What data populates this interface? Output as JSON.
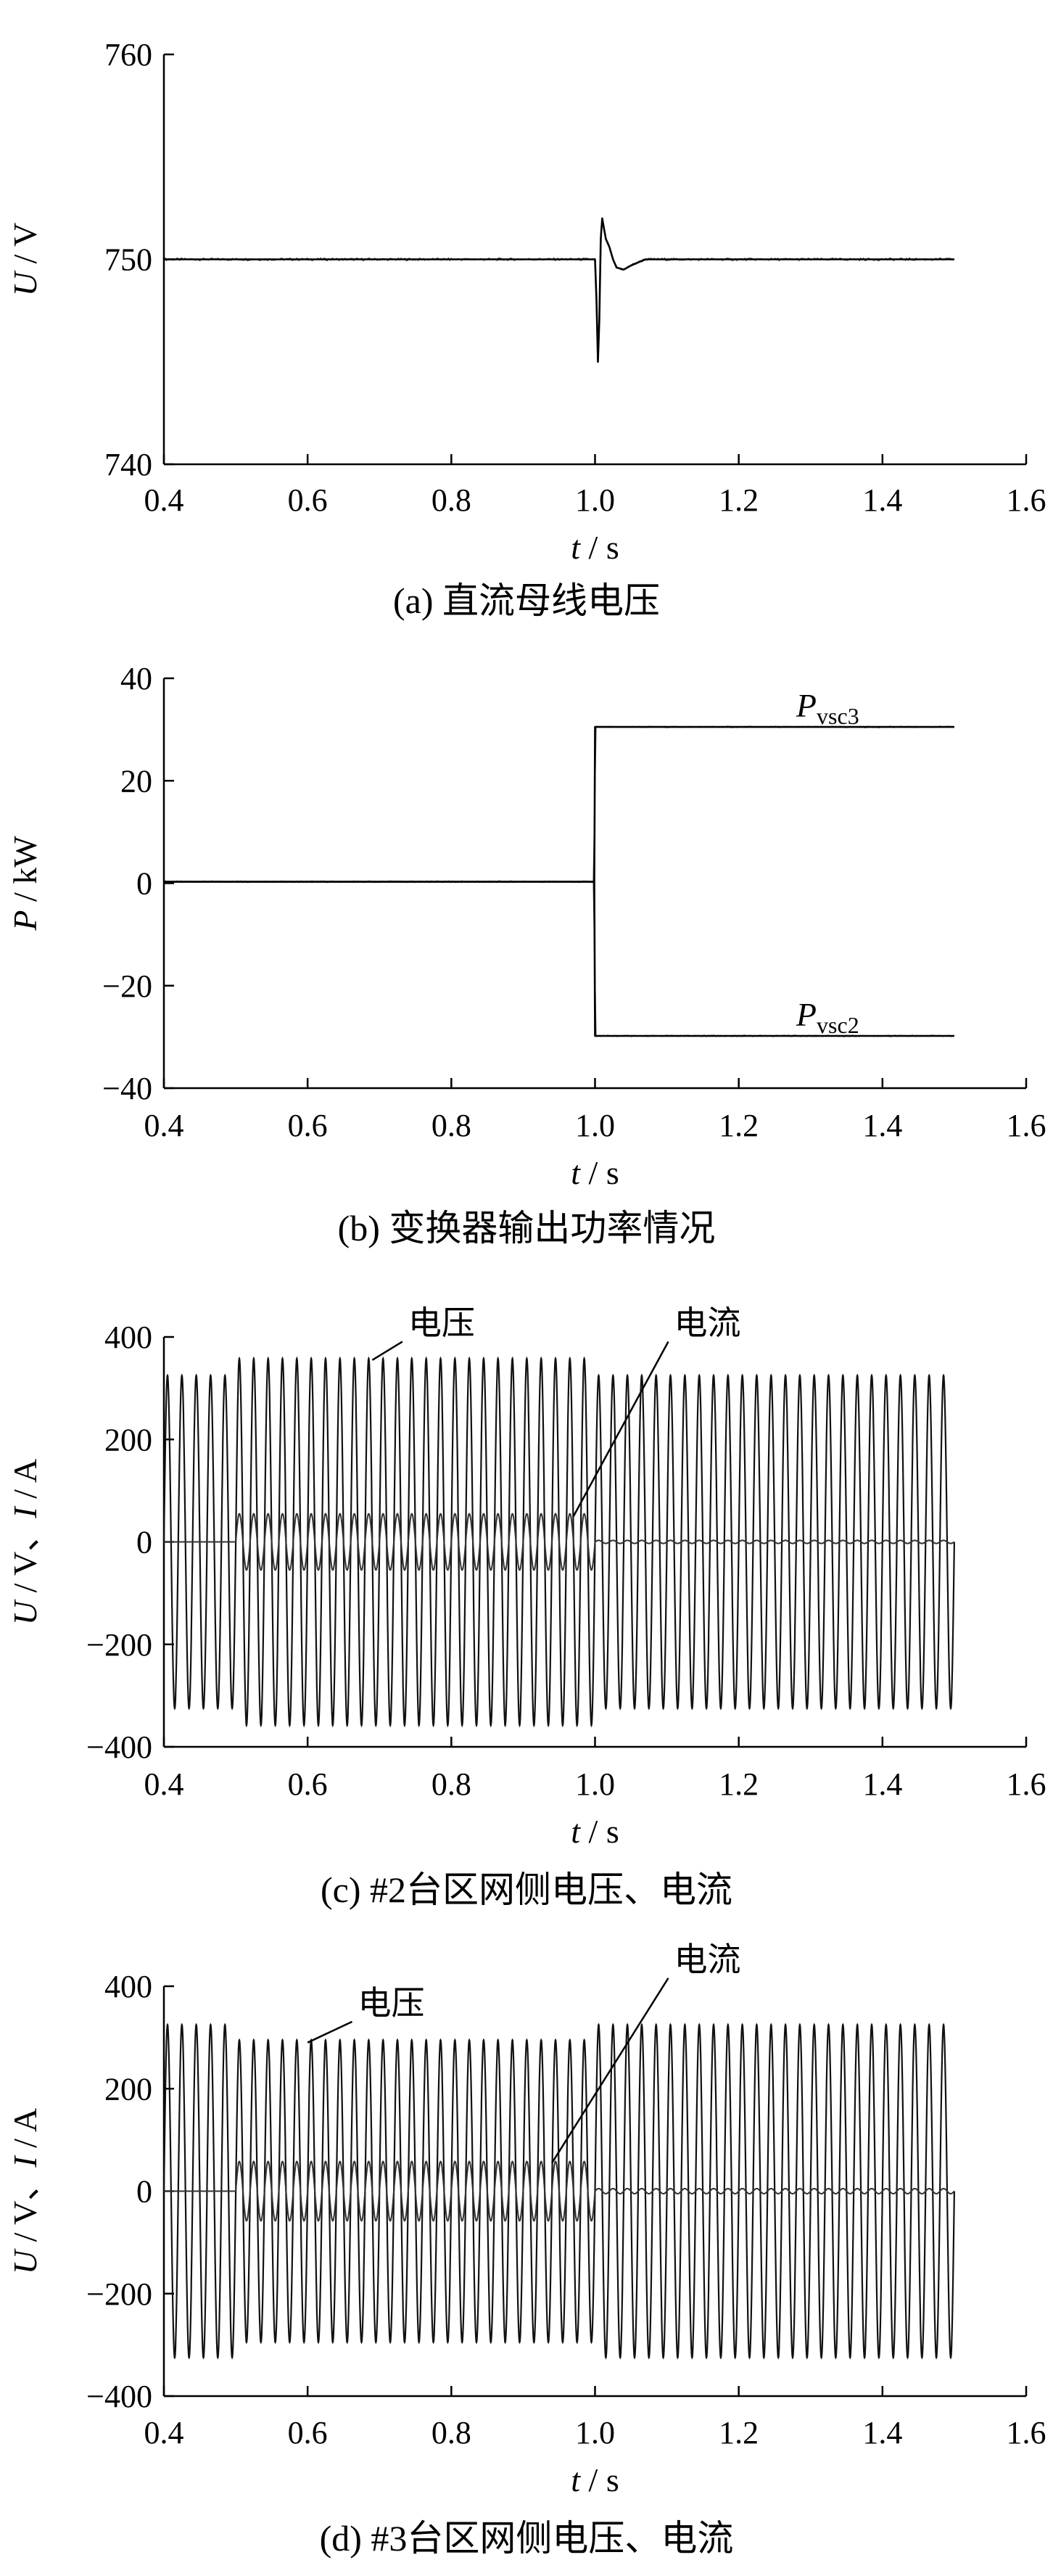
{
  "chart_data": [
    {
      "id": "a",
      "type": "line",
      "caption": "(a)  直流母线电压",
      "xlabel": "t / s",
      "ylabel": "U / V",
      "xlim": [
        0.4,
        1.6
      ],
      "ylim": [
        740,
        760
      ],
      "xticks": [
        0.4,
        0.6,
        0.8,
        1.0,
        1.2,
        1.4,
        1.6
      ],
      "xtick_labels": [
        "0.4",
        "0.6",
        "0.8",
        "1.0",
        "1.2",
        "1.4",
        "1.6"
      ],
      "yticks": [
        740,
        750,
        760
      ],
      "ytick_labels": [
        "740",
        "750",
        "760"
      ],
      "grid": false,
      "series": [
        {
          "x": [
            0.4,
            0.9,
            1.0,
            1.002,
            1.004,
            1.006,
            1.008,
            1.01,
            1.012,
            1.015,
            1.02,
            1.025,
            1.03,
            1.04,
            1.05,
            1.07,
            1.1,
            1.5
          ],
          "values": [
            750,
            750,
            750,
            748,
            745,
            747,
            751,
            752,
            751.6,
            751,
            750.6,
            750,
            749.6,
            749.5,
            749.7,
            750,
            750,
            750
          ]
        }
      ]
    },
    {
      "id": "b",
      "type": "line",
      "caption": "(b)  变换器输出功率情况",
      "xlabel": "t / s",
      "ylabel": "P / kW",
      "xlim": [
        0.4,
        1.6
      ],
      "ylim": [
        -40,
        40
      ],
      "xticks": [
        0.4,
        0.6,
        0.8,
        1.0,
        1.2,
        1.4,
        1.6
      ],
      "xtick_labels": [
        "0.4",
        "0.6",
        "0.8",
        "1.0",
        "1.2",
        "1.4",
        "1.6"
      ],
      "yticks": [
        -40,
        -20,
        0,
        20,
        40
      ],
      "ytick_labels": [
        "−40",
        "−20",
        "0",
        "20",
        "40"
      ],
      "grid": false,
      "series": [
        {
          "name": "P",
          "sub": "vsc3",
          "x": [
            0.4,
            0.999,
            1.0,
            1.5
          ],
          "values": [
            0.3,
            0.3,
            30.5,
            30.5
          ]
        },
        {
          "name": "P",
          "sub": "vsc2",
          "x": [
            0.4,
            0.999,
            1.0,
            1.5
          ],
          "values": [
            0.3,
            0.3,
            -29.8,
            -29.8
          ]
        }
      ]
    },
    {
      "id": "c",
      "type": "line",
      "caption": "(c)  #2台区网侧电压、电流",
      "xlabel": "t / s",
      "ylabel": "U / V、I / A",
      "xlim": [
        0.4,
        1.6
      ],
      "ylim": [
        -400,
        400
      ],
      "xticks": [
        0.4,
        0.6,
        0.8,
        1.0,
        1.2,
        1.4,
        1.6
      ],
      "xtick_labels": [
        "0.4",
        "0.6",
        "0.8",
        "1.0",
        "1.2",
        "1.4",
        "1.6"
      ],
      "yticks": [
        -400,
        -200,
        0,
        200,
        400
      ],
      "ytick_labels": [
        "−400",
        "−200",
        "0",
        "200",
        "400"
      ],
      "grid": false,
      "t_end": 1.5,
      "freq": 50,
      "series": [
        {
          "name": "电压",
          "segments": [
            {
              "t0": 0.4,
              "t1": 0.5,
              "amp": 325
            },
            {
              "t0": 0.5,
              "t1": 1.0,
              "amp": 358
            },
            {
              "t0": 1.0,
              "t1": 1.5,
              "amp": 325
            }
          ]
        },
        {
          "name": "电流",
          "segments": [
            {
              "t0": 0.4,
              "t1": 0.5,
              "amp": 0
            },
            {
              "t0": 0.5,
              "t1": 1.0,
              "amp": 55
            },
            {
              "t0": 1.0,
              "t1": 1.5,
              "amp": 3
            }
          ]
        }
      ],
      "annotations": [
        {
          "text": "电压",
          "point": [
            0.69,
            355
          ],
          "label": [
            0.74,
            405
          ]
        },
        {
          "text": "电流",
          "point": [
            0.97,
            50
          ],
          "label": [
            1.11,
            405
          ]
        }
      ]
    },
    {
      "id": "d",
      "type": "line",
      "caption": "(d)  #3台区网侧电压、电流",
      "xlabel": "t / s",
      "ylabel": "U / V、I / A",
      "xlim": [
        0.4,
        1.6
      ],
      "ylim": [
        -400,
        400
      ],
      "xticks": [
        0.4,
        0.6,
        0.8,
        1.0,
        1.2,
        1.4,
        1.6
      ],
      "xtick_labels": [
        "0.4",
        "0.6",
        "0.8",
        "1.0",
        "1.2",
        "1.4",
        "1.6"
      ],
      "yticks": [
        -400,
        -200,
        0,
        200,
        400
      ],
      "ytick_labels": [
        "−400",
        "−200",
        "0",
        "200",
        "400"
      ],
      "grid": false,
      "t_end": 1.5,
      "freq": 50,
      "series": [
        {
          "name": "电压",
          "segments": [
            {
              "t0": 0.4,
              "t1": 0.5,
              "amp": 325
            },
            {
              "t0": 0.5,
              "t1": 1.0,
              "amp": 295
            },
            {
              "t0": 1.0,
              "t1": 1.5,
              "amp": 325
            }
          ]
        },
        {
          "name": "电流",
          "segments": [
            {
              "t0": 0.4,
              "t1": 0.5,
              "amp": 0
            },
            {
              "t0": 0.5,
              "t1": 1.0,
              "amp": 58
            },
            {
              "t0": 1.0,
              "t1": 1.5,
              "amp": 5
            }
          ]
        }
      ],
      "annotations": [
        {
          "text": "电压",
          "point": [
            0.6,
            290
          ],
          "label": [
            0.67,
            345
          ]
        },
        {
          "text": "电流",
          "point": [
            0.94,
            55
          ],
          "label": [
            1.11,
            430
          ]
        }
      ]
    }
  ]
}
